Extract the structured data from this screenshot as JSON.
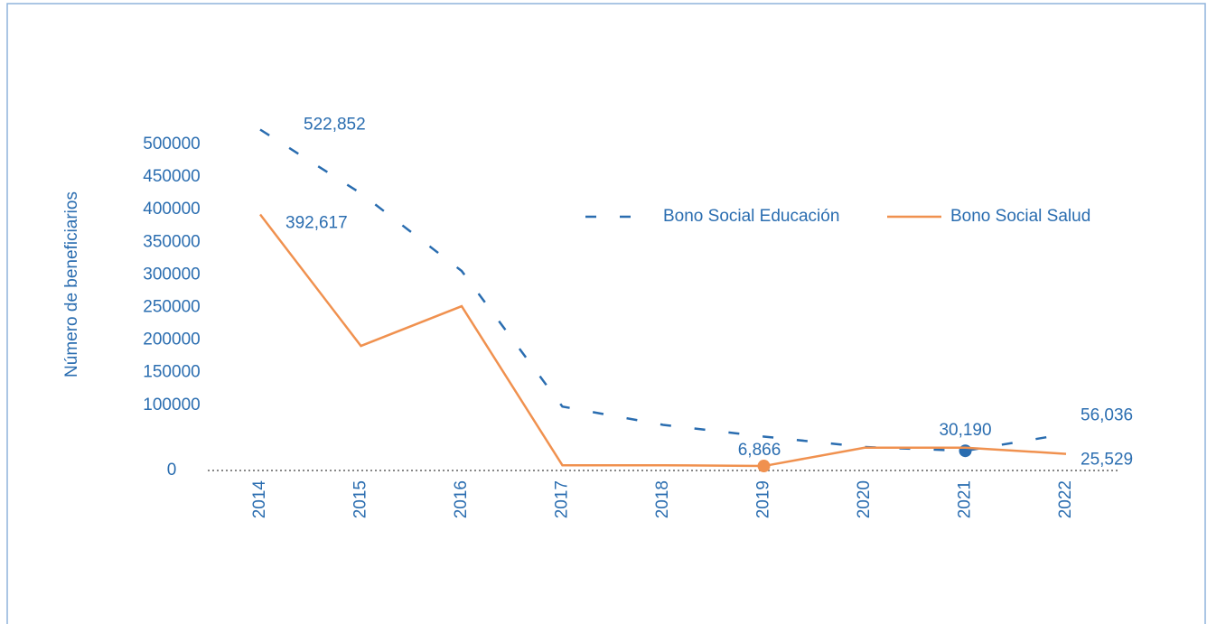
{
  "chart_data": {
    "type": "line",
    "y_label": "Número de beneficiarios",
    "categories": [
      "2014",
      "2015",
      "2016",
      "2017",
      "2018",
      "2019",
      "2020",
      "2021",
      "2022"
    ],
    "series": [
      {
        "name": "Bono Social Educación",
        "color": "#2a6db0",
        "dash": true,
        "highlight": 7,
        "values": [
          522852,
          425000,
          306000,
          98000,
          70000,
          52000,
          36000,
          30190,
          56036
        ],
        "value_labels": [
          "522,852",
          null,
          null,
          null,
          null,
          null,
          null,
          "30,190",
          "56,036"
        ]
      },
      {
        "name": "Bono Social Salud",
        "color": "#f0914f",
        "dash": false,
        "highlight": 5,
        "values": [
          392617,
          191000,
          252000,
          8000,
          8000,
          6866,
          35000,
          35000,
          25529
        ],
        "value_labels": [
          "392,617",
          null,
          null,
          null,
          null,
          "6,866",
          null,
          null,
          "25,529"
        ]
      }
    ],
    "ylim": [
      0,
      550000
    ],
    "yticks": [
      0,
      100000,
      150000,
      200000,
      250000,
      300000,
      350000,
      400000,
      450000,
      500000
    ],
    "grid": false
  }
}
